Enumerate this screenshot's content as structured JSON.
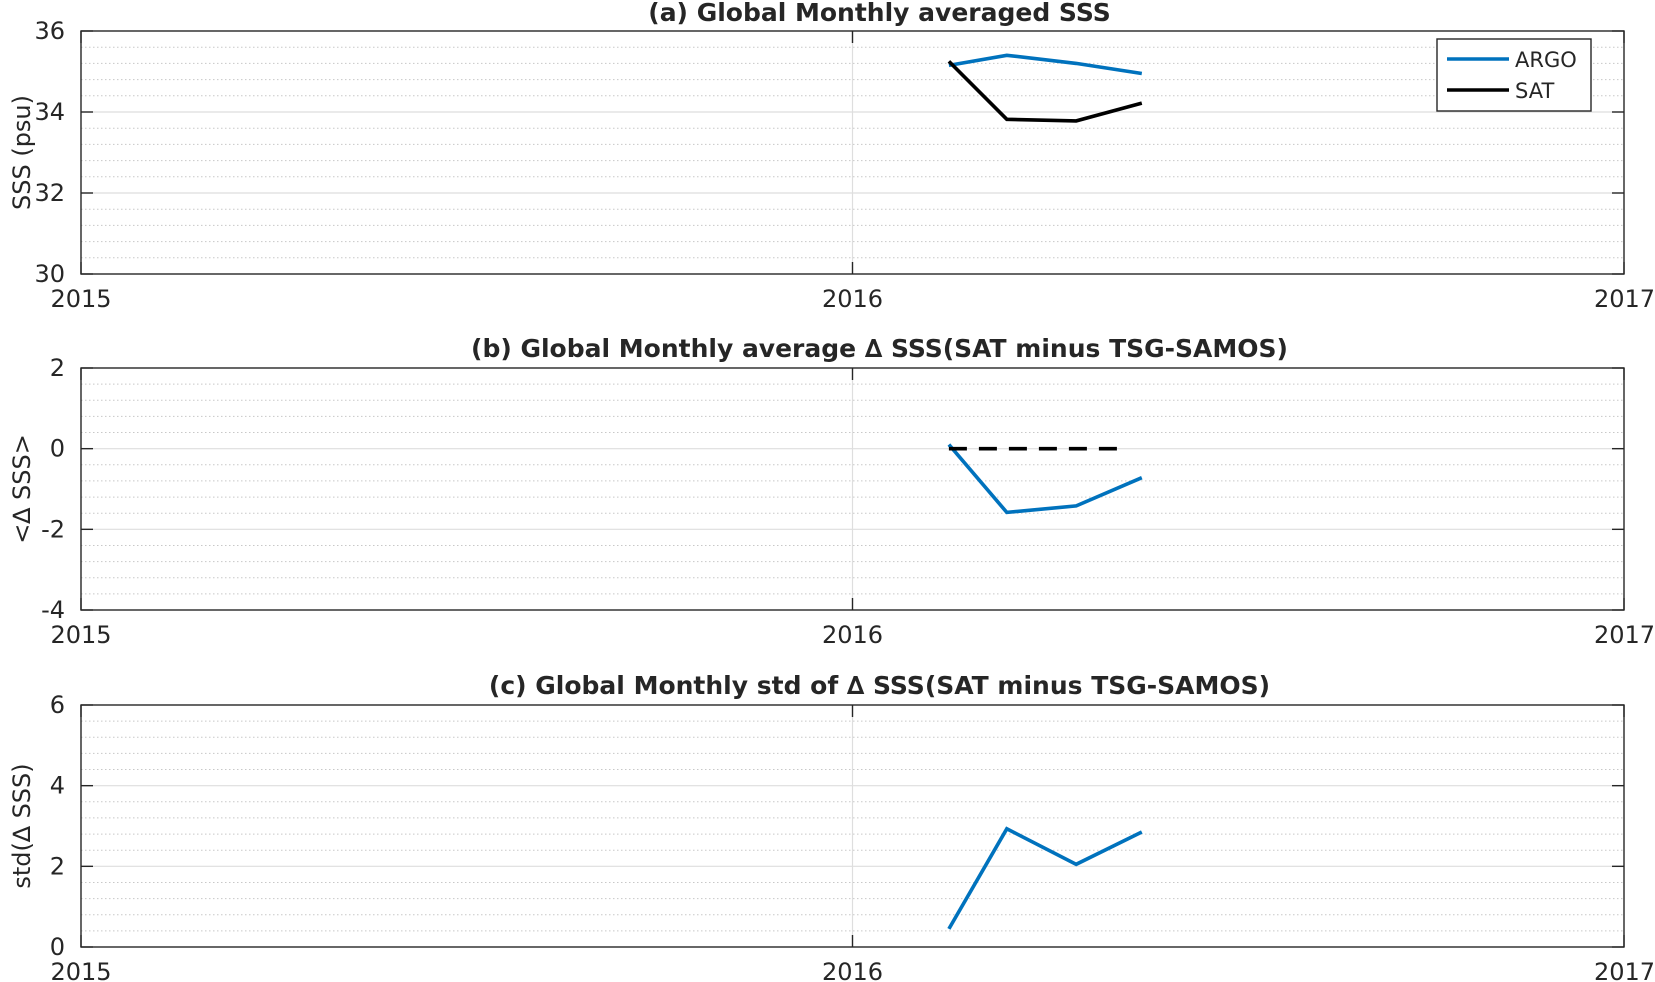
{
  "chart_data": [
    {
      "type": "line",
      "title": "(a) Global Monthly averaged SSS",
      "xlabel": "",
      "ylabel": "SSS (psu)",
      "xlim": [
        2015,
        2017
      ],
      "ylim": [
        30,
        36
      ],
      "xticks": [
        2015,
        2016,
        2017
      ],
      "yticks": [
        30,
        32,
        34,
        36
      ],
      "grid": true,
      "legend": "top-right",
      "series": [
        {
          "name": "ARGO",
          "color": "#0072BD",
          "dash": "solid",
          "x": [
            2016.125,
            2016.2,
            2016.29,
            2016.375
          ],
          "y": [
            35.15,
            35.4,
            35.2,
            34.95
          ]
        },
        {
          "name": "SAT",
          "color": "#000000",
          "dash": "solid",
          "x": [
            2016.125,
            2016.2,
            2016.29,
            2016.375
          ],
          "y": [
            35.25,
            33.82,
            33.78,
            34.22
          ]
        }
      ]
    },
    {
      "type": "line",
      "title": "(b) Global Monthly average ∆ SSS(SAT minus TSG-SAMOS)",
      "xlabel": "",
      "ylabel": "<∆ SSS>",
      "xlim": [
        2015,
        2017
      ],
      "ylim": [
        -4,
        2
      ],
      "xticks": [
        2015,
        2016,
        2017
      ],
      "yticks": [
        -4,
        -2,
        0,
        2
      ],
      "grid": true,
      "legend": "none",
      "series": [
        {
          "color": "#0072BD",
          "dash": "solid",
          "x": [
            2016.125,
            2016.2,
            2016.29,
            2016.375
          ],
          "y": [
            0.1,
            -1.58,
            -1.42,
            -0.72
          ]
        },
        {
          "color": "#000000",
          "dash": "dashed",
          "x": [
            2016.125,
            2016.355
          ],
          "y": [
            0,
            0
          ]
        }
      ]
    },
    {
      "type": "line",
      "title": "(c) Global Monthly std of ∆ SSS(SAT minus TSG-SAMOS)",
      "xlabel": "",
      "ylabel": "std(∆ SSS)",
      "xlim": [
        2015,
        2017
      ],
      "ylim": [
        0,
        6
      ],
      "xticks": [
        2015,
        2016,
        2017
      ],
      "yticks": [
        0,
        2,
        4,
        6
      ],
      "grid": true,
      "legend": "none",
      "series": [
        {
          "color": "#0072BD",
          "dash": "solid",
          "x": [
            2016.125,
            2016.2,
            2016.29,
            2016.375
          ],
          "y": [
            0.45,
            2.93,
            2.05,
            2.85
          ]
        }
      ]
    }
  ]
}
